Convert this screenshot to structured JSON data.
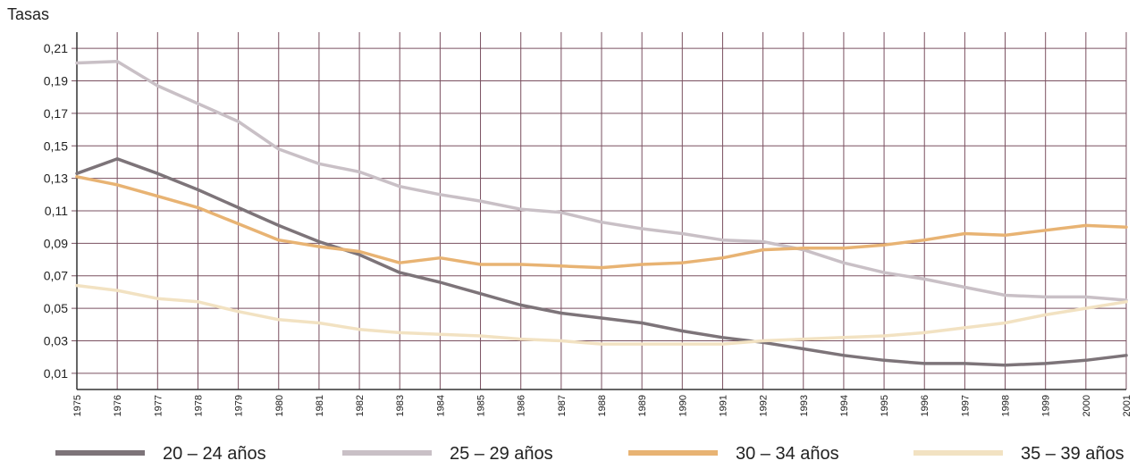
{
  "chart_data": {
    "type": "line",
    "title": "",
    "xlabel": "",
    "ylabel": "Tasas",
    "ylim": [
      0.0,
      0.22
    ],
    "yticks": [
      "0,01",
      "0,03",
      "0,05",
      "0,07",
      "0,09",
      "0,11",
      "0,13",
      "0,15",
      "0,17",
      "0,19",
      "0,21"
    ],
    "ytick_values": [
      0.01,
      0.03,
      0.05,
      0.07,
      0.09,
      0.11,
      0.13,
      0.15,
      0.17,
      0.19,
      0.21
    ],
    "grid": true,
    "legend_position": "bottom",
    "x": [
      "1975",
      "1976",
      "1977",
      "1978",
      "1979",
      "1980",
      "1981",
      "1982",
      "1983",
      "1984",
      "1985",
      "1986",
      "1987",
      "1988",
      "1989",
      "1990",
      "1991",
      "1992",
      "1993",
      "1994",
      "1995",
      "1996",
      "1997",
      "1998",
      "1999",
      "2000",
      "2001"
    ],
    "series": [
      {
        "name": "20 – 24 años",
        "color": "#7d7479",
        "values": [
          0.133,
          0.142,
          0.133,
          0.123,
          0.112,
          0.101,
          0.091,
          0.083,
          0.072,
          0.066,
          0.059,
          0.052,
          0.047,
          0.044,
          0.041,
          0.036,
          0.032,
          0.029,
          0.025,
          0.021,
          0.018,
          0.016,
          0.016,
          0.015,
          0.016,
          0.018,
          0.021
        ]
      },
      {
        "name": "25 – 29 años",
        "color": "#c9c0c6",
        "values": [
          0.201,
          0.202,
          0.187,
          0.176,
          0.165,
          0.148,
          0.139,
          0.134,
          0.125,
          0.12,
          0.116,
          0.111,
          0.109,
          0.103,
          0.099,
          0.096,
          0.092,
          0.091,
          0.086,
          0.078,
          0.072,
          0.068,
          0.063,
          0.058,
          0.057,
          0.057,
          0.055
        ]
      },
      {
        "name": "30 – 34 años",
        "color": "#e8b373",
        "values": [
          0.131,
          0.126,
          0.119,
          0.112,
          0.102,
          0.092,
          0.088,
          0.085,
          0.078,
          0.081,
          0.077,
          0.077,
          0.076,
          0.075,
          0.077,
          0.078,
          0.081,
          0.086,
          0.087,
          0.087,
          0.089,
          0.092,
          0.096,
          0.095,
          0.098,
          0.101,
          0.1
        ]
      },
      {
        "name": "35 – 39 años",
        "color": "#f2e2c2",
        "values": [
          0.064,
          0.061,
          0.056,
          0.054,
          0.048,
          0.043,
          0.041,
          0.037,
          0.035,
          0.034,
          0.033,
          0.031,
          0.03,
          0.028,
          0.028,
          0.028,
          0.028,
          0.03,
          0.031,
          0.032,
          0.033,
          0.035,
          0.038,
          0.041,
          0.046,
          0.05,
          0.054
        ]
      }
    ]
  }
}
